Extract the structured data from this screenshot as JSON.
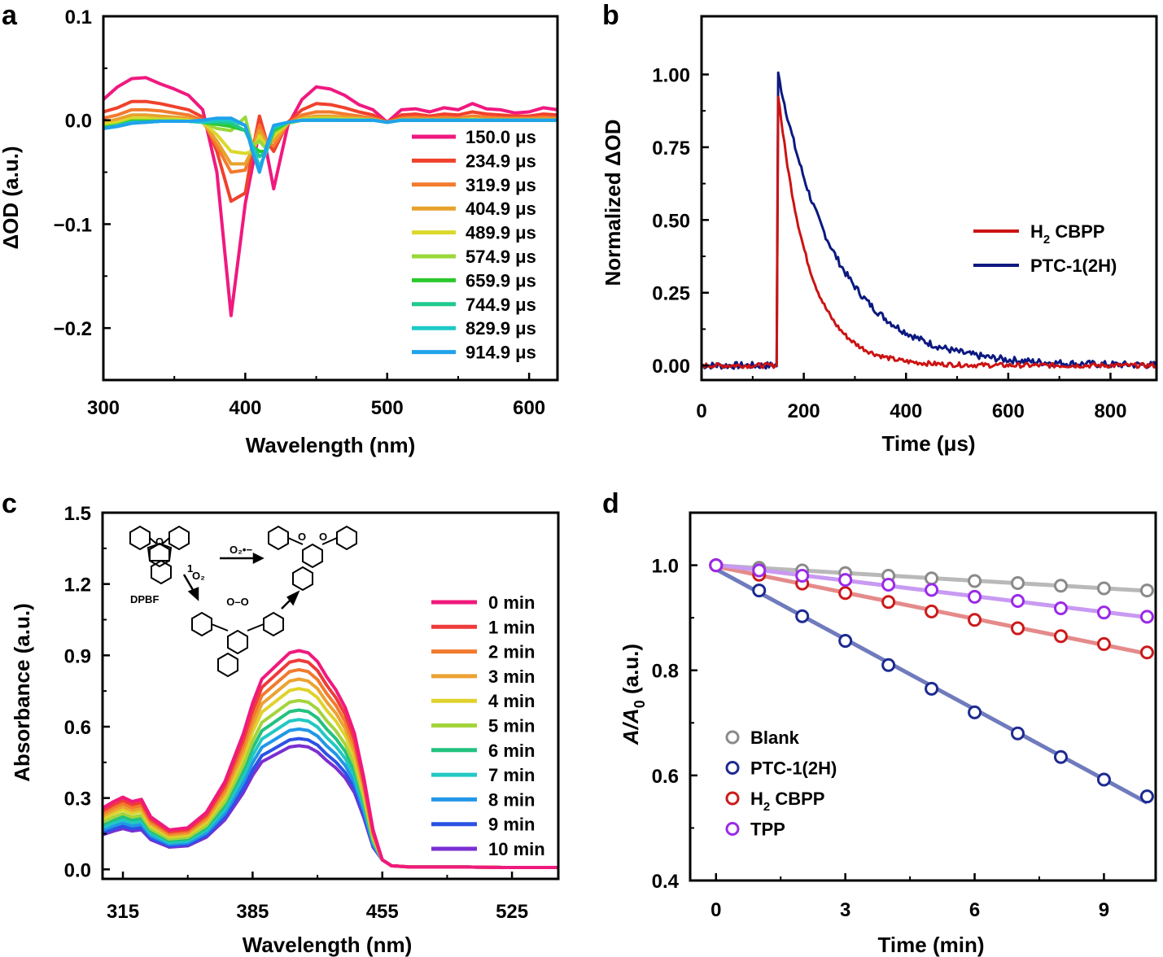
{
  "chart_data": [
    {
      "panel": "a",
      "type": "line",
      "xlabel": "Wavelength (nm)",
      "ylabel": "ΔOD (a.u.)",
      "xlim": [
        300,
        620
      ],
      "ylim": [
        -0.25,
        0.1
      ],
      "xticks": [
        300,
        400,
        500,
        600
      ],
      "xtick_labels": [
        "300",
        "400",
        "500",
        "600"
      ],
      "yticks": [
        0.1,
        0.0,
        -0.1,
        -0.2
      ],
      "ytick_labels": [
        "0.1",
        "0.0",
        "−0.1",
        "−0.2"
      ],
      "legend_position": "right",
      "x": [
        300,
        310,
        320,
        330,
        340,
        350,
        360,
        370,
        380,
        390,
        400,
        405,
        410,
        415,
        420,
        430,
        440,
        450,
        460,
        470,
        480,
        490,
        500,
        510,
        520,
        530,
        540,
        550,
        560,
        570,
        580,
        590,
        600,
        610,
        620
      ],
      "series": [
        {
          "name": "150.0 μs",
          "color": "#f0197f",
          "values": [
            0.02,
            0.032,
            0.04,
            0.041,
            0.035,
            0.03,
            0.024,
            0.01,
            -0.05,
            -0.188,
            -0.08,
            -0.045,
            -0.01,
            -0.03,
            -0.066,
            -0.005,
            0.02,
            0.032,
            0.03,
            0.024,
            0.015,
            0.01,
            -0.002,
            0.01,
            0.011,
            0.008,
            0.012,
            0.01,
            0.016,
            0.011,
            0.01,
            0.007,
            0.008,
            0.012,
            0.01
          ]
        },
        {
          "name": "234.9 μs",
          "color": "#f0412c",
          "values": [
            0.008,
            0.012,
            0.018,
            0.018,
            0.016,
            0.013,
            0.01,
            0.003,
            -0.03,
            -0.078,
            -0.07,
            -0.03,
            0.004,
            -0.02,
            -0.03,
            -0.002,
            0.01,
            0.016,
            0.015,
            0.012,
            0.008,
            0.005,
            -0.002,
            0.005,
            0.006,
            0.004,
            0.006,
            0.005,
            0.008,
            0.006,
            0.005,
            0.004,
            0.004,
            0.006,
            0.005
          ]
        },
        {
          "name": "319.9 μs",
          "color": "#f47a2e",
          "values": [
            0.002,
            0.005,
            0.01,
            0.01,
            0.009,
            0.007,
            0.005,
            0.0,
            -0.025,
            -0.05,
            -0.048,
            -0.025,
            -0.005,
            -0.02,
            -0.025,
            -0.003,
            0.005,
            0.008,
            0.008,
            0.006,
            0.004,
            0.002,
            -0.002,
            0.002,
            0.003,
            0.002,
            0.003,
            0.002,
            0.004,
            0.003,
            0.002,
            0.002,
            0.002,
            0.003,
            0.002
          ]
        },
        {
          "name": "404.9 μs",
          "color": "#e8a22c",
          "values": [
            -0.002,
            0.001,
            0.005,
            0.005,
            0.004,
            0.003,
            0.002,
            -0.002,
            -0.02,
            -0.042,
            -0.042,
            -0.028,
            -0.01,
            -0.022,
            -0.02,
            -0.003,
            0.002,
            0.004,
            0.004,
            0.003,
            0.002,
            0.001,
            -0.002,
            0.001,
            0.001,
            0.001,
            0.001,
            0.001,
            0.002,
            0.001,
            0.001,
            0.001,
            0.001,
            0.001,
            0.001
          ]
        },
        {
          "name": "489.9 μs",
          "color": "#dcd829",
          "values": [
            -0.004,
            -0.002,
            0.002,
            0.002,
            0.001,
            0.001,
            0.0,
            -0.002,
            -0.014,
            -0.03,
            -0.032,
            -0.03,
            -0.015,
            -0.025,
            -0.015,
            -0.003,
            0.001,
            0.002,
            0.002,
            0.001,
            0.001,
            0.0,
            -0.002,
            0.0,
            0.0,
            0.0,
            0.0,
            0.0,
            0.001,
            0.0,
            0.0,
            0.0,
            0.0,
            0.0,
            0.0
          ]
        },
        {
          "name": "574.9 μs",
          "color": "#9ad83a",
          "values": [
            -0.006,
            -0.004,
            0.0,
            0.0,
            0.0,
            0.0,
            -0.001,
            -0.002,
            -0.008,
            -0.01,
            0.003,
            -0.025,
            -0.02,
            -0.028,
            -0.012,
            -0.003,
            0.0,
            0.001,
            0.001,
            0.0,
            0.0,
            0.0,
            -0.002,
            0.0,
            0.0,
            0.0,
            0.0,
            0.0,
            0.0,
            0.0,
            0.0,
            0.0,
            0.0,
            0.0,
            0.0
          ]
        },
        {
          "name": "659.9 μs",
          "color": "#2ac92b",
          "values": [
            -0.007,
            -0.005,
            -0.001,
            -0.001,
            -0.001,
            -0.001,
            -0.001,
            -0.002,
            -0.004,
            -0.006,
            -0.01,
            -0.025,
            -0.03,
            -0.03,
            -0.01,
            -0.002,
            0.0,
            0.0,
            0.0,
            0.0,
            0.0,
            0.0,
            -0.002,
            0.0,
            0.0,
            0.0,
            0.0,
            0.0,
            0.0,
            0.0,
            0.0,
            0.0,
            0.0,
            0.0,
            0.0
          ]
        },
        {
          "name": "744.9 μs",
          "color": "#1fc98c",
          "values": [
            -0.008,
            -0.005,
            -0.002,
            -0.002,
            -0.001,
            -0.001,
            -0.001,
            -0.002,
            -0.002,
            -0.003,
            -0.01,
            -0.025,
            -0.035,
            -0.03,
            -0.008,
            -0.002,
            0.0,
            0.0,
            0.0,
            0.0,
            0.0,
            0.0,
            -0.002,
            0.0,
            0.0,
            0.0,
            0.0,
            0.0,
            0.0,
            0.0,
            0.0,
            0.0,
            0.0,
            0.0,
            0.0
          ]
        },
        {
          "name": "829.9 μs",
          "color": "#1ccac8",
          "values": [
            -0.008,
            -0.006,
            -0.002,
            -0.002,
            -0.001,
            -0.001,
            -0.001,
            -0.002,
            0.0,
            0.0,
            -0.005,
            -0.025,
            -0.045,
            -0.03,
            -0.006,
            -0.002,
            0.0,
            0.0,
            0.0,
            0.0,
            0.0,
            0.0,
            -0.002,
            0.0,
            0.0,
            0.0,
            0.0,
            0.0,
            0.0,
            0.0,
            0.0,
            0.0,
            0.0,
            0.0,
            0.0
          ]
        },
        {
          "name": "914.9 μs",
          "color": "#20a2ec",
          "values": [
            -0.008,
            -0.006,
            -0.003,
            -0.002,
            -0.001,
            -0.001,
            -0.001,
            0.0,
            0.002,
            0.002,
            -0.005,
            -0.03,
            -0.05,
            -0.025,
            -0.005,
            -0.002,
            0.0,
            0.0,
            0.0,
            0.0,
            0.0,
            0.0,
            -0.002,
            0.0,
            0.0,
            0.0,
            0.0,
            0.0,
            0.0,
            0.0,
            0.0,
            0.0,
            0.0,
            0.0,
            0.0
          ]
        }
      ]
    },
    {
      "panel": "b",
      "type": "line",
      "xlabel": "Time (μs)",
      "ylabel": "Normalized ΔOD",
      "xlim": [
        0,
        890
      ],
      "ylim": [
        -0.05,
        1.2
      ],
      "xticks": [
        0,
        200,
        400,
        600,
        800
      ],
      "xtick_labels": [
        "0",
        "200",
        "400",
        "600",
        "800"
      ],
      "yticks": [
        1.0,
        0.75,
        0.5,
        0.25,
        0.0
      ],
      "ytick_labels": [
        "1.00",
        "0.75",
        "0.50",
        "0.25",
        "0.00"
      ],
      "legend_position": "right",
      "series": [
        {
          "name": "H",
          "name_sub": "2",
          "name_rest": " CBPP",
          "color": "#cc1313",
          "rise_time": 150,
          "peak": 0.93,
          "decay_tau": 60,
          "noise": 0.008
        },
        {
          "name": "PTC-1(2H)",
          "color": "#0d1980",
          "rise_time": 150,
          "peak": 1.0,
          "decay_tau": 115,
          "noise": 0.012
        }
      ]
    },
    {
      "panel": "c",
      "type": "line",
      "xlabel": "Wavelength (nm)",
      "ylabel": "Absorbance (a.u.)",
      "xlim": [
        304,
        550
      ],
      "ylim": [
        -0.04,
        1.5
      ],
      "xticks": [
        315,
        385,
        455,
        525
      ],
      "xtick_labels": [
        "315",
        "385",
        "455",
        "525"
      ],
      "yticks": [
        1.5,
        1.2,
        0.9,
        0.6,
        0.3,
        0.0
      ],
      "ytick_labels": [
        "1.5",
        "1.2",
        "0.9",
        "0.6",
        "0.3",
        "0.0"
      ],
      "legend_position": "right",
      "x": [
        304,
        310,
        315,
        320,
        325,
        330,
        340,
        350,
        360,
        370,
        380,
        385,
        390,
        395,
        400,
        405,
        410,
        415,
        420,
        425,
        430,
        435,
        440,
        445,
        450,
        455,
        460,
        470,
        480,
        500,
        520,
        550
      ],
      "profile": [
        0.28,
        0.31,
        0.33,
        0.31,
        0.32,
        0.24,
        0.18,
        0.19,
        0.26,
        0.4,
        0.62,
        0.76,
        0.87,
        0.91,
        0.95,
        0.99,
        1.0,
        0.99,
        0.95,
        0.88,
        0.82,
        0.74,
        0.62,
        0.42,
        0.18,
        0.04,
        0.015,
        0.01,
        0.01,
        0.01,
        0.008,
        0.008
      ],
      "series": [
        {
          "name": "0 min",
          "color": "#ef1a7d",
          "scale": 0.92
        },
        {
          "name": "1 min",
          "color": "#ef3a3a",
          "scale": 0.88
        },
        {
          "name": "2 min",
          "color": "#f27a2d",
          "scale": 0.84
        },
        {
          "name": "3 min",
          "color": "#eca232",
          "scale": 0.8
        },
        {
          "name": "4 min",
          "color": "#e0d22c",
          "scale": 0.76
        },
        {
          "name": "5 min",
          "color": "#a4d43b",
          "scale": 0.71
        },
        {
          "name": "6 min",
          "color": "#22c27f",
          "scale": 0.67
        },
        {
          "name": "7 min",
          "color": "#22c8c3",
          "scale": 0.63
        },
        {
          "name": "8 min",
          "color": "#2297e8",
          "scale": 0.59
        },
        {
          "name": "9 min",
          "color": "#2c52e4",
          "scale": 0.55
        },
        {
          "name": "10 min",
          "color": "#7a2fd2",
          "scale": 0.52
        }
      ],
      "inset": {
        "dpbf_label": "DPBF",
        "superoxide_label": "O₂•−",
        "singlet_label": "O₂",
        "singlet_sup": "1",
        "bridge_label": "O–O"
      }
    },
    {
      "panel": "d",
      "type": "scatter",
      "xlabel": "Time (min)",
      "ylabel": "A/A",
      "ylabel_sub": "0",
      "ylabel_rest": " (a.u.)",
      "xlim": [
        -0.6,
        10.2
      ],
      "ylim": [
        0.4,
        1.1
      ],
      "xticks": [
        0,
        3,
        6,
        9
      ],
      "xtick_labels": [
        "0",
        "3",
        "6",
        "9"
      ],
      "yticks": [
        1.0,
        0.8,
        0.6,
        0.4
      ],
      "ytick_labels": [
        "1.0",
        "0.8",
        "0.6",
        "0.4"
      ],
      "legend_position": "bottom-left",
      "x": [
        0,
        1,
        2,
        3,
        4,
        5,
        6,
        7,
        8,
        9,
        10
      ],
      "series": [
        {
          "name": "Blank",
          "color": "#8a8a8a",
          "fit_color": "#b9b9b9",
          "values": [
            1.0,
            0.995,
            0.99,
            0.985,
            0.98,
            0.975,
            0.97,
            0.966,
            0.961,
            0.956,
            0.952
          ]
        },
        {
          "name": "PTC-1(2H)",
          "color": "#1c2a90",
          "fit_color": "#6f7bbd",
          "values": [
            1.0,
            0.952,
            0.903,
            0.856,
            0.81,
            0.765,
            0.72,
            0.68,
            0.635,
            0.592,
            0.56
          ]
        },
        {
          "name": "H",
          "name_sub": "2",
          "name_rest": " CBPP",
          "color": "#cc1a1a",
          "fit_color": "#e58a8a",
          "values": [
            1.0,
            0.982,
            0.965,
            0.947,
            0.93,
            0.912,
            0.896,
            0.88,
            0.865,
            0.85,
            0.834
          ]
        },
        {
          "name": "TPP",
          "color": "#9a2ae8",
          "fit_color": "#c89af2",
          "values": [
            1.0,
            0.99,
            0.98,
            0.972,
            0.963,
            0.953,
            0.94,
            0.932,
            0.918,
            0.91,
            0.902
          ]
        }
      ]
    }
  ]
}
